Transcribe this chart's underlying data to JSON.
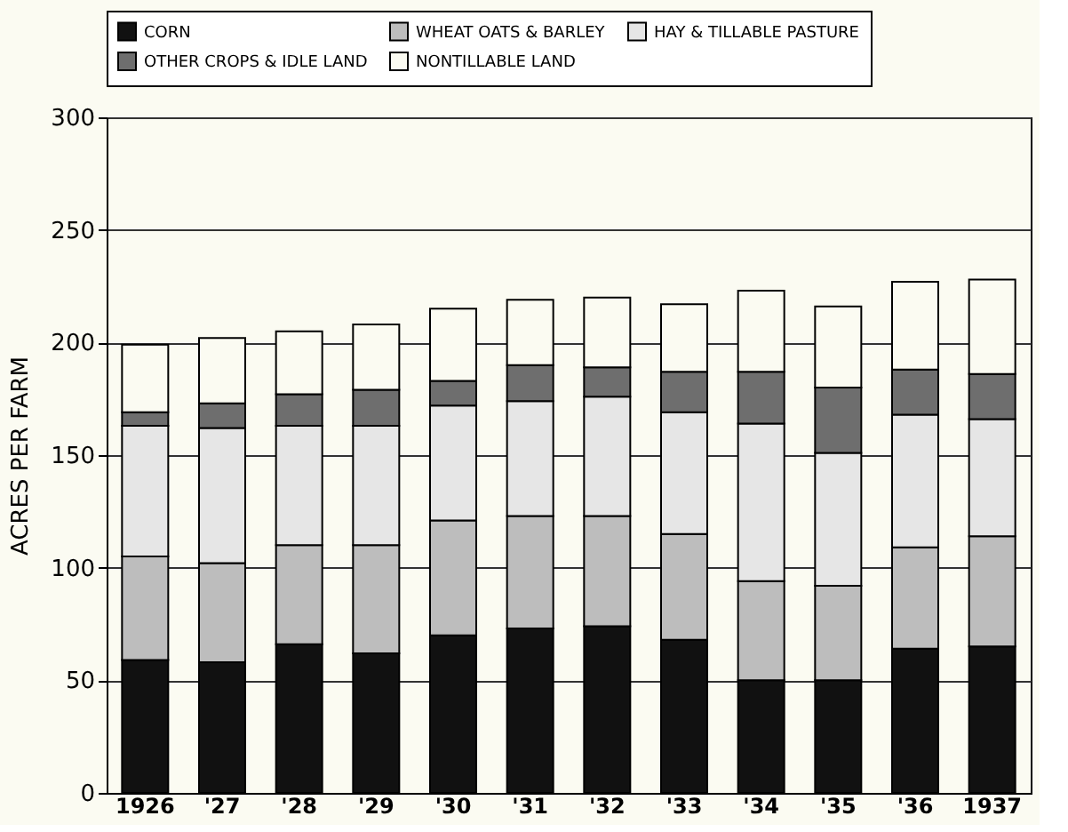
{
  "chart_data": {
    "type": "bar",
    "stacked": true,
    "ylabel": "ACRES PER FARM",
    "categories": [
      "1926",
      "'27",
      "'28",
      "'29",
      "'30",
      "'31",
      "'32",
      "'33",
      "'34",
      "'35",
      "'36",
      "1937"
    ],
    "series": [
      {
        "name": "CORN",
        "color": "#111111",
        "values": [
          59,
          58,
          66,
          62,
          70,
          73,
          74,
          68,
          50,
          50,
          64,
          65
        ]
      },
      {
        "name": "WHEAT OATS & BARLEY",
        "color": "#bdbdbd",
        "values": [
          46,
          44,
          44,
          48,
          51,
          50,
          49,
          47,
          44,
          42,
          45,
          49
        ]
      },
      {
        "name": "HAY & TILLABLE PASTURE",
        "color": "#e6e6e6",
        "values": [
          58,
          60,
          53,
          53,
          51,
          51,
          53,
          54,
          70,
          59,
          59,
          52
        ]
      },
      {
        "name": "OTHER CROPS & IDLE LAND",
        "color": "#6e6e6e",
        "values": [
          6,
          11,
          14,
          16,
          11,
          16,
          13,
          18,
          23,
          29,
          20,
          20
        ]
      },
      {
        "name": "NONTILLABLE LAND",
        "color": "#fbfbf2",
        "values": [
          30,
          29,
          28,
          29,
          32,
          29,
          31,
          30,
          36,
          36,
          39,
          42
        ]
      }
    ],
    "ylim": [
      0,
      300
    ],
    "yticks": [
      0,
      50,
      100,
      150,
      200,
      250,
      300
    ],
    "grid": "y",
    "legend": "top"
  }
}
